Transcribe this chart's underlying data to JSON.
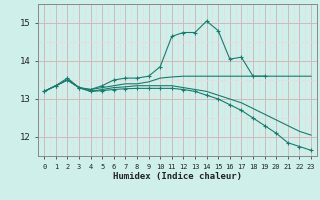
{
  "xlabel": "Humidex (Indice chaleur)",
  "xlim": [
    -0.5,
    23.5
  ],
  "ylim": [
    11.5,
    15.5
  ],
  "yticks": [
    12,
    13,
    14,
    15
  ],
  "xticks": [
    0,
    1,
    2,
    3,
    4,
    5,
    6,
    7,
    8,
    9,
    10,
    11,
    12,
    13,
    14,
    15,
    16,
    17,
    18,
    19,
    20,
    21,
    22,
    23
  ],
  "bg_color": "#cff0ea",
  "grid_major_color": "#d4b8b8",
  "grid_minor_color": "#e8dada",
  "line_color": "#1a7a6e",
  "lines": [
    {
      "x": [
        0,
        1,
        2,
        3,
        4,
        5,
        6,
        7,
        8,
        9,
        10,
        11,
        12,
        13,
        14,
        15,
        16,
        17,
        18,
        19
      ],
      "y": [
        13.2,
        13.35,
        13.55,
        13.3,
        13.25,
        13.35,
        13.5,
        13.55,
        13.55,
        13.6,
        13.85,
        14.65,
        14.75,
        14.75,
        15.05,
        14.8,
        14.05,
        14.1,
        13.6,
        13.6
      ],
      "marker": true
    },
    {
      "x": [
        0,
        1,
        2,
        3,
        4,
        5,
        6,
        7,
        8,
        9,
        10,
        11,
        12,
        13,
        14,
        15,
        16,
        17,
        18,
        19,
        20,
        21,
        22,
        23
      ],
      "y": [
        13.2,
        13.35,
        13.5,
        13.3,
        13.25,
        13.3,
        13.35,
        13.4,
        13.4,
        13.45,
        13.55,
        13.58,
        13.6,
        13.6,
        13.6,
        13.6,
        13.6,
        13.6,
        13.6,
        13.6,
        13.6,
        13.6,
        13.6,
        13.6
      ],
      "marker": false
    },
    {
      "x": [
        0,
        1,
        2,
        3,
        4,
        5,
        6,
        7,
        8,
        9,
        10,
        11,
        12,
        13,
        14,
        15,
        16,
        17,
        18,
        19,
        20,
        21,
        22,
        23
      ],
      "y": [
        13.2,
        13.35,
        13.5,
        13.3,
        13.2,
        13.25,
        13.3,
        13.32,
        13.35,
        13.35,
        13.35,
        13.35,
        13.3,
        13.25,
        13.2,
        13.1,
        13.0,
        12.9,
        12.75,
        12.6,
        12.45,
        12.3,
        12.15,
        12.05
      ],
      "marker": false
    },
    {
      "x": [
        0,
        1,
        2,
        3,
        4,
        5,
        6,
        7,
        8,
        9,
        10,
        11,
        12,
        13,
        14,
        15,
        16,
        17,
        18,
        19,
        20,
        21,
        22,
        23
      ],
      "y": [
        13.2,
        13.35,
        13.5,
        13.3,
        13.2,
        13.22,
        13.25,
        13.27,
        13.28,
        13.28,
        13.28,
        13.28,
        13.25,
        13.2,
        13.1,
        13.0,
        12.85,
        12.7,
        12.5,
        12.3,
        12.1,
        11.85,
        11.75,
        11.65
      ],
      "marker": true
    }
  ]
}
